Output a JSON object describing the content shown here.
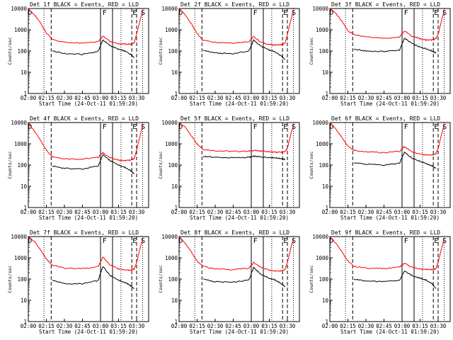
{
  "figure": {
    "xlabel": "Start Time (24-Oct-11 01:59:20)",
    "ylabel": "Counts/sec",
    "xticks": [
      "02:00",
      "02:15",
      "02:30",
      "02:45",
      "03:00",
      "03:15",
      "03:30"
    ],
    "yticks": [
      "1",
      "10",
      "100",
      "1000",
      "10000"
    ],
    "line_colors": {
      "events": "#000000",
      "lld": "#ff0000"
    },
    "markers": [
      {
        "label": "D",
        "time": "01:59"
      },
      {
        "label": "F",
        "time": "03:01"
      },
      {
        "label": "E",
        "time": "03:26"
      },
      {
        "label": "S",
        "time": "03:33"
      }
    ]
  },
  "chart_data": [
    {
      "type": "line",
      "title": "Det 1f BLACK = Events, RED = LLD",
      "xlim": [
        "02:00",
        "03:40"
      ],
      "ylim": [
        1,
        10000
      ],
      "yscale": "log",
      "x": [
        "02:00",
        "02:05",
        "02:10",
        "02:15",
        "02:20",
        "02:30",
        "02:45",
        "02:58",
        "03:02",
        "03:08",
        "03:15",
        "03:20",
        "03:25",
        "03:28",
        "03:30",
        "03:33",
        "03:35"
      ],
      "series": [
        {
          "name": "LLD",
          "values": [
            10000,
            5000,
            2200,
            700,
            350,
            260,
            240,
            280,
            500,
            280,
            220,
            210,
            210,
            240,
            600,
            3000,
            8000
          ]
        },
        {
          "name": "Events",
          "values": [
            null,
            null,
            null,
            null,
            100,
            75,
            70,
            95,
            330,
            180,
            120,
            100,
            70,
            50,
            null,
            null,
            null
          ]
        }
      ]
    },
    {
      "type": "line",
      "title": "Det 2f BLACK = Events, RED = LLD",
      "xlim": [
        "02:00",
        "03:40"
      ],
      "ylim": [
        1,
        10000
      ],
      "yscale": "log",
      "x": [
        "02:00",
        "02:05",
        "02:10",
        "02:15",
        "02:20",
        "02:30",
        "02:45",
        "02:58",
        "03:02",
        "03:08",
        "03:15",
        "03:20",
        "03:25",
        "03:28",
        "03:30",
        "03:33",
        "03:35"
      ],
      "series": [
        {
          "name": "LLD",
          "values": [
            10000,
            5000,
            2000,
            650,
            320,
            260,
            240,
            280,
            480,
            260,
            200,
            190,
            200,
            230,
            600,
            3000,
            8000
          ]
        },
        {
          "name": "Events",
          "values": [
            null,
            null,
            null,
            null,
            110,
            80,
            75,
            100,
            320,
            170,
            110,
            90,
            60,
            40,
            null,
            null,
            null
          ]
        }
      ]
    },
    {
      "type": "line",
      "title": "Det 3f BLACK = Events, RED = LLD",
      "xlim": [
        "02:00",
        "03:40"
      ],
      "ylim": [
        1,
        10000
      ],
      "yscale": "log",
      "x": [
        "02:00",
        "02:05",
        "02:10",
        "02:15",
        "02:20",
        "02:30",
        "02:45",
        "02:58",
        "03:02",
        "03:08",
        "03:15",
        "03:20",
        "03:25",
        "03:28",
        "03:30",
        "03:33",
        "03:35"
      ],
      "series": [
        {
          "name": "LLD",
          "values": [
            10000,
            6000,
            2500,
            900,
            600,
            480,
            400,
            450,
            900,
            500,
            380,
            330,
            330,
            380,
            600,
            3000,
            8000
          ]
        },
        {
          "name": "Events",
          "values": [
            null,
            null,
            null,
            null,
            120,
            100,
            95,
            110,
            400,
            230,
            150,
            130,
            100,
            80,
            null,
            null,
            null
          ]
        }
      ]
    },
    {
      "type": "line",
      "title": "Det 4f BLACK = Events, RED = LLD",
      "xlim": [
        "02:00",
        "03:40"
      ],
      "ylim": [
        1,
        10000
      ],
      "yscale": "log",
      "x": [
        "02:00",
        "02:05",
        "02:10",
        "02:15",
        "02:20",
        "02:30",
        "02:45",
        "02:58",
        "03:02",
        "03:08",
        "03:15",
        "03:20",
        "03:25",
        "03:28",
        "03:30",
        "03:33",
        "03:35"
      ],
      "series": [
        {
          "name": "LLD",
          "values": [
            10000,
            4000,
            1500,
            500,
            250,
            200,
            190,
            230,
            380,
            220,
            170,
            160,
            170,
            200,
            500,
            2500,
            8000
          ]
        },
        {
          "name": "Events",
          "values": [
            null,
            null,
            null,
            null,
            90,
            70,
            65,
            90,
            300,
            160,
            100,
            80,
            55,
            40,
            null,
            null,
            null
          ]
        }
      ]
    },
    {
      "type": "line",
      "title": "Det 5f BLACK = Events, RED = LLD",
      "xlim": [
        "02:00",
        "03:40"
      ],
      "ylim": [
        1,
        10000
      ],
      "yscale": "log",
      "x": [
        "02:00",
        "02:05",
        "02:10",
        "02:15",
        "02:20",
        "02:30",
        "02:45",
        "02:58",
        "03:02",
        "03:08",
        "03:15",
        "03:20",
        "03:25",
        "03:28",
        "03:30",
        "03:33",
        "03:35"
      ],
      "series": [
        {
          "name": "LLD",
          "values": [
            10000,
            6000,
            2500,
            1000,
            550,
            470,
            440,
            450,
            480,
            460,
            420,
            400,
            400,
            420,
            600,
            3000,
            8000
          ]
        },
        {
          "name": "Events",
          "values": [
            null,
            null,
            null,
            null,
            260,
            230,
            220,
            230,
            260,
            240,
            230,
            220,
            200,
            180,
            null,
            null,
            null
          ]
        }
      ]
    },
    {
      "type": "line",
      "title": "Det 6f BLACK = Events, RED = LLD",
      "xlim": [
        "02:00",
        "03:40"
      ],
      "ylim": [
        1,
        10000
      ],
      "yscale": "log",
      "x": [
        "02:00",
        "02:05",
        "02:10",
        "02:15",
        "02:20",
        "02:30",
        "02:45",
        "02:58",
        "03:02",
        "03:08",
        "03:15",
        "03:20",
        "03:25",
        "03:28",
        "03:30",
        "03:33",
        "03:35"
      ],
      "series": [
        {
          "name": "LLD",
          "values": [
            10000,
            5000,
            2000,
            800,
            500,
            420,
            380,
            450,
            750,
            420,
            320,
            300,
            300,
            330,
            600,
            3000,
            8000
          ]
        },
        {
          "name": "Events",
          "values": [
            null,
            null,
            null,
            null,
            130,
            110,
            100,
            120,
            400,
            220,
            150,
            120,
            90,
            70,
            null,
            null,
            null
          ]
        }
      ]
    },
    {
      "type": "line",
      "title": "Det 7f BLACK = Events, RED = LLD",
      "xlim": [
        "02:00",
        "03:40"
      ],
      "ylim": [
        1,
        10000
      ],
      "yscale": "log",
      "x": [
        "02:00",
        "02:05",
        "02:10",
        "02:15",
        "02:20",
        "02:30",
        "02:45",
        "02:58",
        "03:02",
        "03:08",
        "03:15",
        "03:20",
        "03:25",
        "03:28",
        "03:30",
        "03:33",
        "03:35"
      ],
      "series": [
        {
          "name": "LLD",
          "values": [
            10000,
            6000,
            2500,
            900,
            450,
            330,
            310,
            380,
            1100,
            450,
            300,
            270,
            260,
            300,
            600,
            3000,
            8000
          ]
        },
        {
          "name": "Events",
          "values": [
            null,
            null,
            null,
            null,
            90,
            60,
            60,
            85,
            400,
            150,
            90,
            70,
            50,
            35,
            null,
            null,
            null
          ]
        }
      ]
    },
    {
      "type": "line",
      "title": "Det 8f BLACK = Events, RED = LLD",
      "xlim": [
        "02:00",
        "03:40"
      ],
      "ylim": [
        1,
        10000
      ],
      "yscale": "log",
      "x": [
        "02:00",
        "02:05",
        "02:10",
        "02:15",
        "02:20",
        "02:30",
        "02:45",
        "02:58",
        "03:02",
        "03:08",
        "03:15",
        "03:20",
        "03:25",
        "03:28",
        "03:30",
        "03:33",
        "03:35"
      ],
      "series": [
        {
          "name": "LLD",
          "values": [
            10000,
            5000,
            2000,
            700,
            400,
            300,
            280,
            330,
            600,
            350,
            260,
            240,
            240,
            280,
            600,
            3000,
            8000
          ]
        },
        {
          "name": "Events",
          "values": [
            null,
            null,
            null,
            null,
            100,
            75,
            70,
            90,
            360,
            170,
            110,
            90,
            60,
            45,
            null,
            null,
            null
          ]
        }
      ]
    },
    {
      "type": "line",
      "title": "Det 9f BLACK = Events, RED = LLD",
      "xlim": [
        "02:00",
        "03:40"
      ],
      "ylim": [
        1,
        10000
      ],
      "yscale": "log",
      "x": [
        "02:00",
        "02:05",
        "02:10",
        "02:15",
        "02:20",
        "02:30",
        "02:45",
        "02:58",
        "03:02",
        "03:08",
        "03:15",
        "03:20",
        "03:25",
        "03:28",
        "03:30",
        "03:33",
        "03:35"
      ],
      "series": [
        {
          "name": "LLD",
          "values": [
            10000,
            5000,
            2000,
            700,
            400,
            330,
            310,
            380,
            550,
            360,
            300,
            280,
            280,
            300,
            600,
            3000,
            8000
          ]
        },
        {
          "name": "Events",
          "values": [
            null,
            null,
            null,
            null,
            100,
            80,
            75,
            90,
            250,
            150,
            110,
            90,
            60,
            35,
            null,
            null,
            null
          ]
        }
      ]
    }
  ]
}
